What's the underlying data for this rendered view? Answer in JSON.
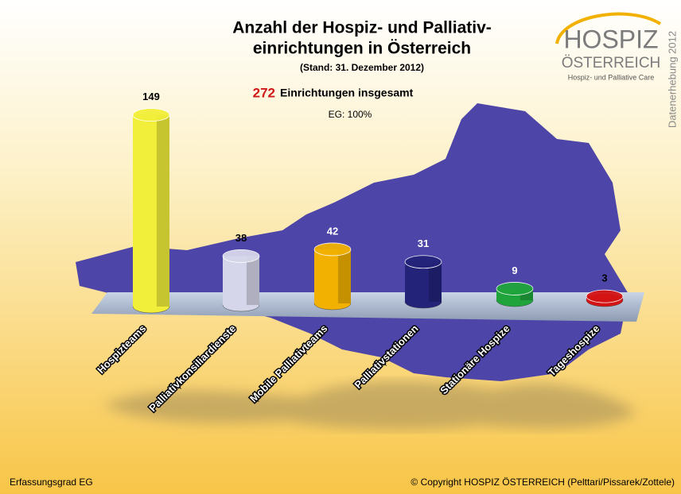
{
  "chart_data": {
    "type": "bar",
    "title": [
      "Anzahl der Hospiz- und Palliativ-",
      "einrichtungen in Österreich"
    ],
    "subtitle": "(Stand: 31. Dezember 2012)",
    "total": 272,
    "total_text": "Einrichtungen insgesamt",
    "coverage": "EG: 100%",
    "categories": [
      "Hospizteams",
      "Palliativkonsiliardienste",
      "Mobile Palliativteams",
      "Palliativstationen",
      "Stationäre Hospize",
      "Tageshospize"
    ],
    "values": [
      149,
      38,
      42,
      31,
      9,
      3
    ],
    "colors": [
      "#f2ef3a",
      "#d6d6ea",
      "#f2b100",
      "#23237a",
      "#1fa43c",
      "#d41414"
    ],
    "logo": {
      "name": "HOSPIZ",
      "country": "ÖSTERREICH",
      "tagline": "Hospiz- und Palliative Care"
    },
    "side_note": "Datenerhebung 2012",
    "footer_left": "Erfassungsgrad EG",
    "footer_right": "© Copyright HOSPIZ ÖSTERREICH (Pelttari/Pissarek/Zottele)"
  }
}
